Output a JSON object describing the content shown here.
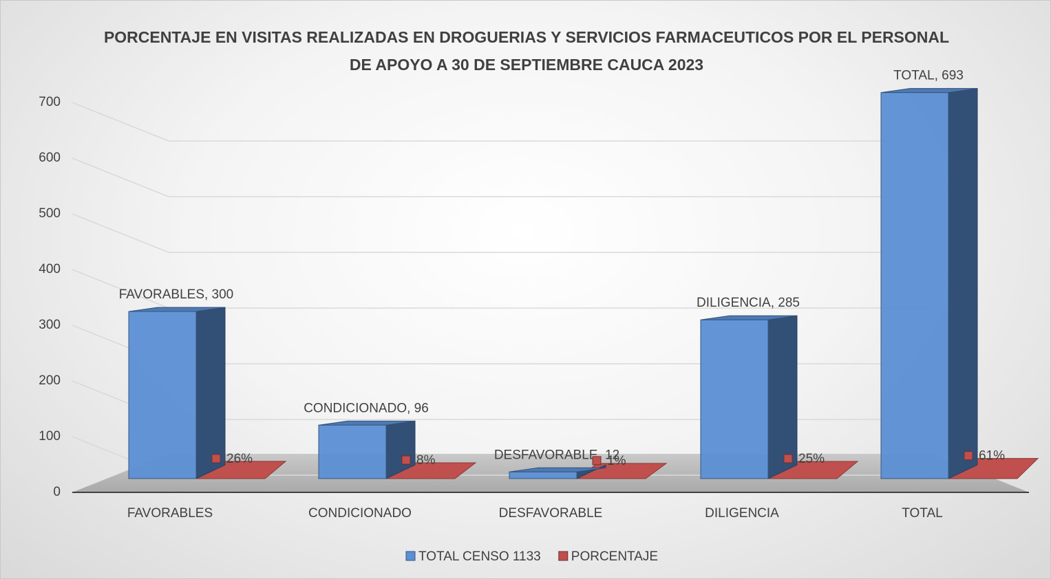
{
  "chart_data": {
    "type": "bar3d",
    "title": "PORCENTAJE EN VISITAS REALIZADAS EN DROGUERIAS Y SERVICIOS FARMACEUTICOS POR EL PERSONAL DE APOYO A 30 DE SEPTIEMBRE CAUCA 2023",
    "categories": [
      "FAVORABLES",
      "CONDICIONADO",
      "DESFAVORABLE",
      "DILIGENCIA",
      "TOTAL"
    ],
    "series": [
      {
        "name": "TOTAL CENSO 1133",
        "color": "#5b8fd4",
        "values": [
          300,
          96,
          12,
          285,
          693
        ],
        "value_labels": [
          "FAVORABLES, 300",
          "CONDICIONADO, 96",
          "DESFAVORABLE, 12",
          "DILIGENCIA, 285",
          "TOTAL, 693"
        ]
      },
      {
        "name": "PORCENTAJE",
        "color": "#c0504d",
        "values": [
          26,
          8,
          1,
          25,
          61
        ],
        "value_labels": [
          "26%",
          "8%",
          "1%",
          "25%",
          "61%"
        ]
      }
    ],
    "ylim": [
      0,
      700
    ],
    "yticks": [
      0,
      100,
      200,
      300,
      400,
      500,
      600,
      700
    ],
    "grid": true,
    "legend": "bottom"
  }
}
